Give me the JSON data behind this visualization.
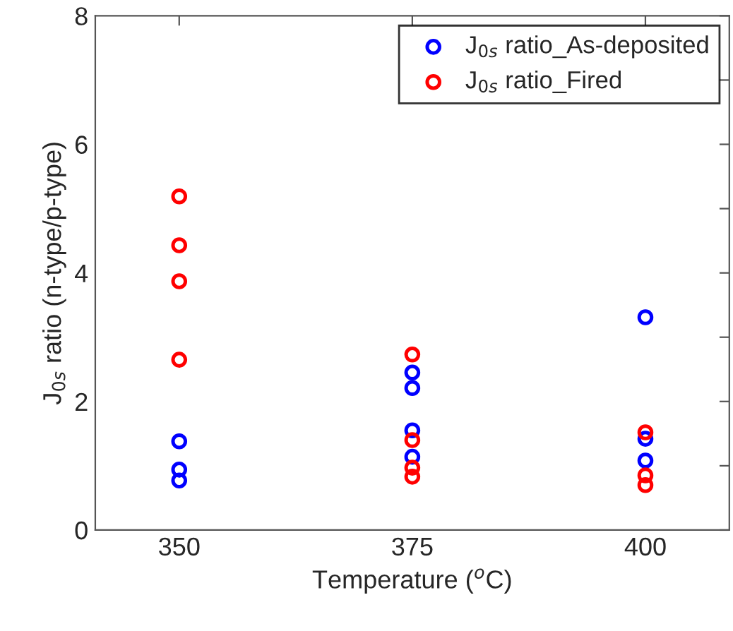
{
  "chart_data": {
    "type": "scatter",
    "xlabel": "Temperature ($^{o}$C)",
    "ylabel": "J$_{0s}$ ratio (n-type/p-type)",
    "xlim": [
      341,
      409
    ],
    "xticks": [
      350,
      375,
      400
    ],
    "ylim": [
      0,
      8
    ],
    "yticks": [
      0,
      {
        "value": 1,
        "label": null
      },
      2,
      {
        "value": 3,
        "label": null
      },
      4,
      {
        "value": 5,
        "label": null
      },
      6,
      {
        "value": 7,
        "label": null
      },
      8
    ],
    "marker": "circle",
    "legend": "top right",
    "grid": false,
    "series": [
      {
        "name": "J$_{0s}$ ratio_As-deposited",
        "color": "#0000ff",
        "x": [
          350,
          350,
          350,
          375,
          375,
          375,
          375,
          400,
          400,
          400
        ],
        "values": [
          1.38,
          0.94,
          0.77,
          2.45,
          2.21,
          1.55,
          1.14,
          3.31,
          1.42,
          1.08
        ]
      },
      {
        "name": "J$_{0s}$ ratio_Fired",
        "color": "#ff0000",
        "x": [
          350,
          350,
          350,
          350,
          375,
          375,
          375,
          375,
          400,
          400,
          400
        ],
        "values": [
          5.19,
          4.43,
          3.87,
          2.65,
          2.73,
          1.4,
          0.97,
          0.83,
          1.52,
          0.85,
          0.7
        ]
      }
    ]
  }
}
